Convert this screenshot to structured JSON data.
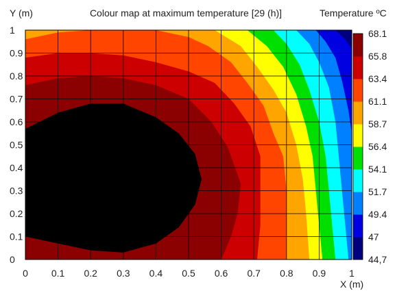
{
  "chart_data": {
    "type": "heatmap",
    "title": "Colour map at maximum temperature [29 (h)]",
    "xlabel": "X (m)",
    "ylabel": "Y (m)",
    "colorbar_label": "Temperature ºC",
    "xlim": [
      0,
      1
    ],
    "ylim": [
      0,
      1
    ],
    "x_ticks": [
      "0",
      "0.1",
      "0.2",
      "0.3",
      "0.4",
      "0.5",
      "0.6",
      "0.7",
      "0.8",
      "0.9",
      "1"
    ],
    "y_ticks": [
      "0",
      "0.1",
      "0.2",
      "0.3",
      "0.4",
      "0.5",
      "0.6",
      "0.7",
      "0.8",
      "0.9",
      "1"
    ],
    "grid": true,
    "levels": [
      "44,7",
      "47",
      "49.4",
      "51.7",
      "54.1",
      "56.4",
      "58.7",
      "61.1",
      "63.4",
      "65.8",
      "68.1"
    ],
    "level_values": [
      44.7,
      47,
      49.4,
      51.7,
      54.1,
      56.4,
      58.7,
      61.1,
      63.4,
      65.8,
      68.1
    ],
    "band_colors": [
      "#00007f",
      "#0000e0",
      "#0080ff",
      "#00ffff",
      "#00e000",
      "#ffff00",
      "#ffa500",
      "#ff4500",
      "#cc0000",
      "#8b0000"
    ],
    "boundaries": [
      {
        "between": [
          65.8,
          68.1
        ],
        "points": [
          [
            0,
            0.57
          ],
          [
            0.1,
            0.64
          ],
          [
            0.2,
            0.68
          ],
          [
            0.3,
            0.68
          ],
          [
            0.4,
            0.62
          ],
          [
            0.47,
            0.55
          ],
          [
            0.52,
            0.46
          ],
          [
            0.54,
            0.35
          ],
          [
            0.52,
            0.24
          ],
          [
            0.47,
            0.14
          ],
          [
            0.4,
            0.07
          ],
          [
            0.3,
            0.03
          ],
          [
            0.2,
            0.04
          ],
          [
            0.1,
            0.07
          ],
          [
            0,
            0.1
          ]
        ]
      },
      {
        "between": [
          63.4,
          65.8
        ],
        "points": [
          [
            0,
            0.76
          ],
          [
            0.1,
            0.79
          ],
          [
            0.2,
            0.8
          ],
          [
            0.3,
            0.79
          ],
          [
            0.4,
            0.76
          ],
          [
            0.5,
            0.7
          ],
          [
            0.57,
            0.6
          ],
          [
            0.62,
            0.49
          ],
          [
            0.66,
            0.33
          ],
          [
            0.65,
            0.2
          ],
          [
            0.63,
            0.1
          ],
          [
            0.6,
            0
          ]
        ]
      },
      {
        "between": [
          61.1,
          63.4
        ],
        "points": [
          [
            0,
            0.88
          ],
          [
            0.1,
            0.9
          ],
          [
            0.2,
            0.9
          ],
          [
            0.3,
            0.89
          ],
          [
            0.4,
            0.86
          ],
          [
            0.5,
            0.82
          ],
          [
            0.58,
            0.77
          ],
          [
            0.64,
            0.68
          ],
          [
            0.69,
            0.58
          ],
          [
            0.72,
            0.45
          ],
          [
            0.72,
            0.3
          ],
          [
            0.72,
            0.15
          ],
          [
            0.71,
            0
          ]
        ]
      },
      {
        "between": [
          58.7,
          61.1
        ],
        "points": [
          [
            0,
            0.96
          ],
          [
            0.1,
            0.99
          ],
          [
            0.2,
            1
          ],
          [
            0.4,
            1
          ],
          [
            0.5,
            0.97
          ],
          [
            0.56,
            0.93
          ],
          [
            0.63,
            0.86
          ],
          [
            0.68,
            0.77
          ],
          [
            0.73,
            0.67
          ],
          [
            0.76,
            0.55
          ],
          [
            0.79,
            0.45
          ],
          [
            0.8,
            0.3
          ],
          [
            0.8,
            0.15
          ],
          [
            0.8,
            0
          ]
        ]
      },
      {
        "between": [
          56.4,
          58.7
        ],
        "points": [
          [
            0.58,
            1
          ],
          [
            0.66,
            0.93
          ],
          [
            0.71,
            0.84
          ],
          [
            0.76,
            0.74
          ],
          [
            0.8,
            0.64
          ],
          [
            0.83,
            0.5
          ],
          [
            0.85,
            0.35
          ],
          [
            0.86,
            0.2
          ],
          [
            0.87,
            0
          ]
        ]
      },
      {
        "between": [
          54.1,
          56.4
        ],
        "points": [
          [
            0.68,
            1
          ],
          [
            0.74,
            0.93
          ],
          [
            0.79,
            0.84
          ],
          [
            0.83,
            0.72
          ],
          [
            0.86,
            0.58
          ],
          [
            0.88,
            0.45
          ],
          [
            0.89,
            0.3
          ],
          [
            0.9,
            0.15
          ],
          [
            0.91,
            0
          ]
        ]
      },
      {
        "between": [
          51.7,
          54.1
        ],
        "points": [
          [
            0.76,
            1
          ],
          [
            0.8,
            0.94
          ],
          [
            0.84,
            0.85
          ],
          [
            0.87,
            0.74
          ],
          [
            0.9,
            0.6
          ],
          [
            0.92,
            0.45
          ],
          [
            0.93,
            0.3
          ],
          [
            0.94,
            0.15
          ],
          [
            0.95,
            0
          ]
        ]
      },
      {
        "between": [
          49.4,
          51.7
        ],
        "points": [
          [
            0.83,
            1
          ],
          [
            0.87,
            0.94
          ],
          [
            0.9,
            0.86
          ],
          [
            0.93,
            0.75
          ],
          [
            0.95,
            0.6
          ],
          [
            0.96,
            0.45
          ],
          [
            0.97,
            0.3
          ],
          [
            0.98,
            0.15
          ],
          [
            0.99,
            0
          ]
        ]
      },
      {
        "between": [
          47,
          49.4
        ],
        "points": [
          [
            0.89,
            1
          ],
          [
            0.92,
            0.95
          ],
          [
            0.95,
            0.88
          ],
          [
            0.97,
            0.78
          ],
          [
            0.99,
            0.65
          ],
          [
            1,
            0.55
          ]
        ]
      },
      {
        "between": [
          44.7,
          47
        ],
        "points": [
          [
            0.95,
            1
          ],
          [
            0.98,
            0.96
          ],
          [
            1,
            0.92
          ]
        ]
      }
    ]
  }
}
